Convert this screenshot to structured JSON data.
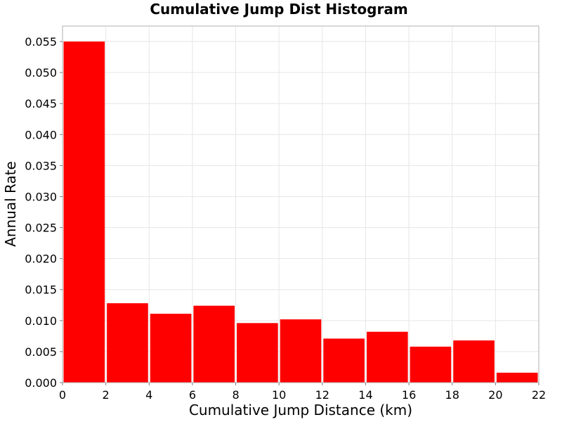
{
  "chart_data": {
    "type": "bar",
    "title": "Cumulative Jump Dist Histogram",
    "xlabel": "Cumulative Jump Distance (km)",
    "ylabel": "Annual Rate",
    "bin_edges": [
      0,
      2,
      4,
      6,
      8,
      10,
      12,
      14,
      16,
      18,
      20,
      22
    ],
    "values": [
      0.055,
      0.0128,
      0.0111,
      0.0124,
      0.0096,
      0.0102,
      0.0071,
      0.0082,
      0.0058,
      0.0068,
      0.0016
    ],
    "xlim": [
      0,
      22
    ],
    "ylim": [
      0,
      0.0575
    ],
    "x_ticks": [
      0,
      2,
      4,
      6,
      8,
      10,
      12,
      14,
      16,
      18,
      20,
      22
    ],
    "x_tick_labels": [
      "0",
      "2",
      "4",
      "6",
      "8",
      "10",
      "12",
      "14",
      "16",
      "18",
      "20",
      "22"
    ],
    "y_ticks": [
      0,
      0.005,
      0.01,
      0.015,
      0.02,
      0.025,
      0.03,
      0.035,
      0.04,
      0.045,
      0.05,
      0.055
    ],
    "y_tick_labels": [
      "0.000",
      "0.005",
      "0.010",
      "0.015",
      "0.020",
      "0.025",
      "0.030",
      "0.035",
      "0.040",
      "0.045",
      "0.050",
      "0.055"
    ],
    "grid": true,
    "bar_color": "#ff0000",
    "grid_color": "#e6e6e6",
    "frame_color": "#b0b0b0"
  }
}
